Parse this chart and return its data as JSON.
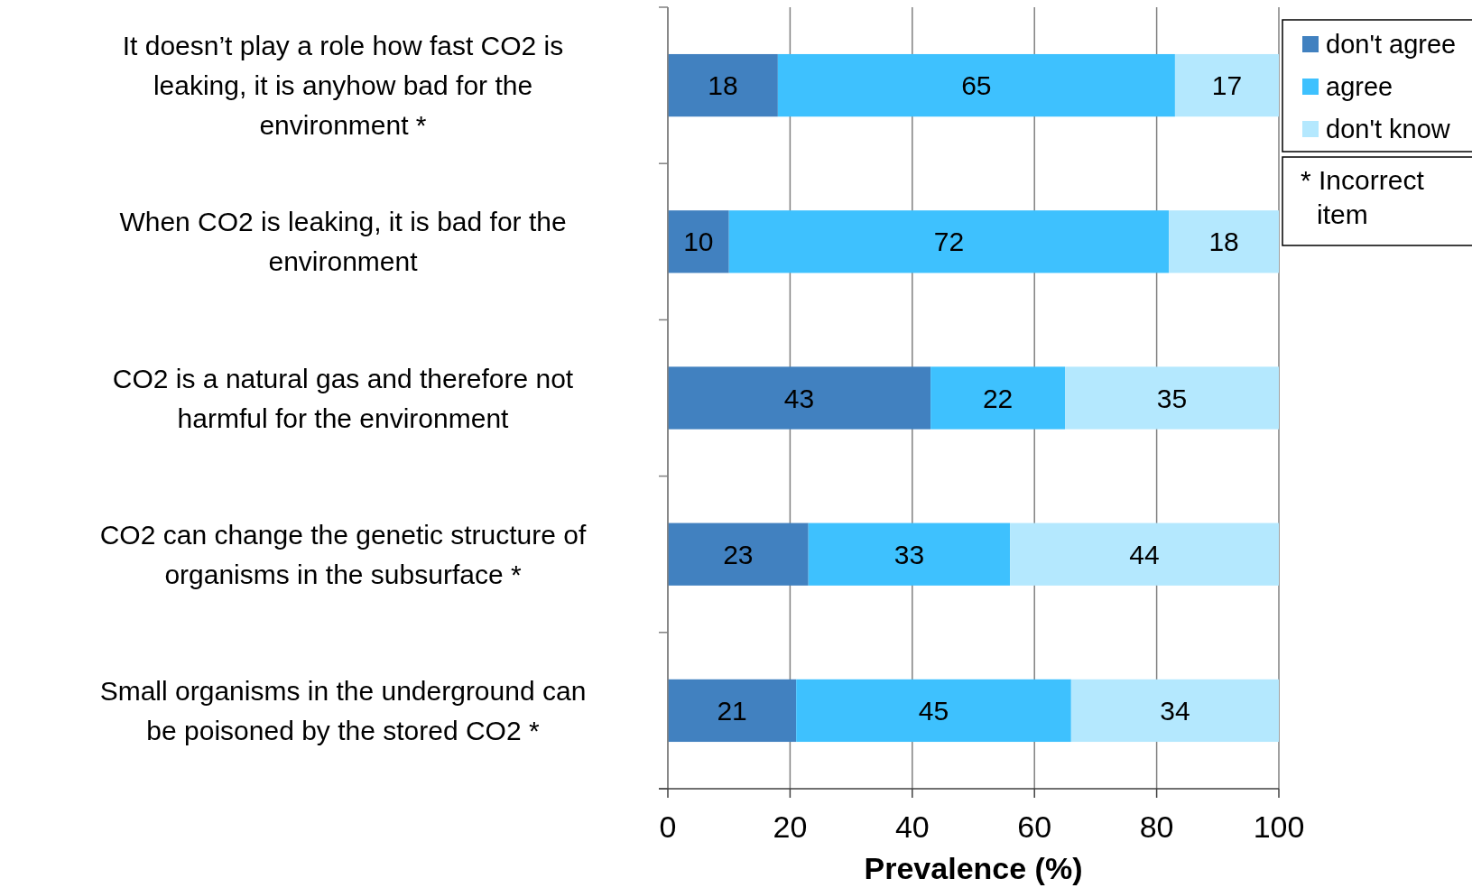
{
  "chart_data": {
    "type": "bar",
    "orientation": "horizontal",
    "stacked": true,
    "categories": [
      "It doesn’t play a role how fast CO2 is leaking, it is anyhow bad for the environment *",
      "When CO2 is leaking, it is bad for the environment",
      "CO2 is a natural gas and therefore not harmful for the environment",
      "CO2 can change the genetic structure of organisms in the subsurface *",
      "Small organisms in the underground can be poisoned by the stored CO2 *"
    ],
    "series": [
      {
        "name": "don't agree",
        "color": "#4181c0",
        "values": [
          18,
          10,
          43,
          23,
          21
        ]
      },
      {
        "name": "agree",
        "color": "#3ec1fe",
        "values": [
          65,
          72,
          22,
          33,
          45
        ]
      },
      {
        "name": "don't know",
        "color": "#b4e8fe",
        "values": [
          17,
          18,
          35,
          44,
          34
        ]
      }
    ],
    "xlim": [
      0,
      100
    ],
    "xticks": [
      0,
      20,
      40,
      60,
      80,
      100
    ],
    "xlabel": "Prevalence (%)",
    "grid": "x",
    "data_labels": true,
    "legend": "top right",
    "annotations": [
      "* Incorrect item"
    ]
  }
}
